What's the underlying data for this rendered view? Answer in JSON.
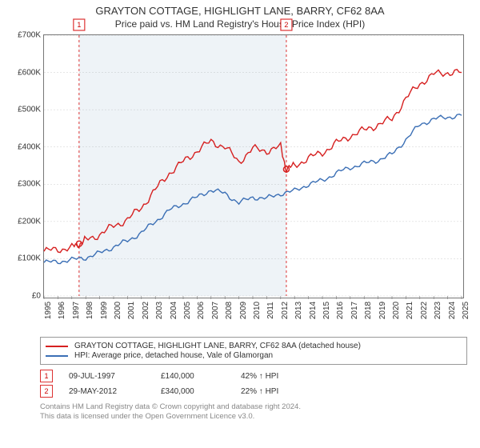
{
  "titles": {
    "line1": "GRAYTON COTTAGE, HIGHLIGHT LANE, BARRY, CF62 8AA",
    "line2": "Price paid vs. HM Land Registry's House Price Index (HPI)"
  },
  "colors": {
    "series_property": "#d62020",
    "series_hpi": "#3b6fb5",
    "shade": "#eef3f7",
    "event_border": "#d33",
    "attribution": "#888888",
    "axis": "#777777"
  },
  "chart": {
    "type": "line",
    "x_start_year": 1995,
    "x_end_year": 2025,
    "x_ticks": [
      1995,
      1996,
      1997,
      1998,
      1999,
      2000,
      2001,
      2002,
      2003,
      2004,
      2005,
      2006,
      2007,
      2008,
      2009,
      2010,
      2011,
      2012,
      2013,
      2014,
      2015,
      2016,
      2017,
      2018,
      2019,
      2020,
      2021,
      2022,
      2023,
      2024,
      2025
    ],
    "y_min": 0,
    "y_max": 700000,
    "y_ticks": [
      0,
      100000,
      200000,
      300000,
      400000,
      500000,
      600000,
      700000
    ],
    "y_tick_labels": [
      "£0",
      "£100K",
      "£200K",
      "£300K",
      "£400K",
      "£500K",
      "£600K",
      "£700K"
    ],
    "shaded_span": {
      "from_year": 1997.52,
      "to_year": 2012.41
    },
    "events": [
      {
        "id": "1",
        "year": 1997.52,
        "date": "09-JUL-1997",
        "price_label": "£140,000",
        "price": 140000,
        "delta": "42% ↑ HPI"
      },
      {
        "id": "2",
        "year": 2012.41,
        "date": "29-MAY-2012",
        "price_label": "£340,000",
        "price": 340000,
        "delta": "22% ↑ HPI"
      }
    ],
    "series": [
      {
        "key": "property",
        "legend": "GRAYTON COTTAGE, HIGHLIGHT LANE, BARRY, CF62 8AA (detached house)",
        "color": "#d62020",
        "points": [
          [
            1995,
            120000
          ],
          [
            1996,
            125000
          ],
          [
            1997,
            130000
          ],
          [
            1997.52,
            140000
          ],
          [
            1998,
            150000
          ],
          [
            1999,
            165000
          ],
          [
            2000,
            188000
          ],
          [
            2001,
            205000
          ],
          [
            2002,
            238000
          ],
          [
            2003,
            285000
          ],
          [
            2004,
            330000
          ],
          [
            2005,
            360000
          ],
          [
            2006,
            390000
          ],
          [
            2007,
            415000
          ],
          [
            2008,
            400000
          ],
          [
            2009,
            360000
          ],
          [
            2010,
            395000
          ],
          [
            2011,
            390000
          ],
          [
            2012,
            400000
          ],
          [
            2012.41,
            340000
          ],
          [
            2013,
            350000
          ],
          [
            2014,
            370000
          ],
          [
            2015,
            385000
          ],
          [
            2016,
            410000
          ],
          [
            2017,
            430000
          ],
          [
            2018,
            445000
          ],
          [
            2019,
            460000
          ],
          [
            2020,
            475000
          ],
          [
            2021,
            530000
          ],
          [
            2022,
            570000
          ],
          [
            2023,
            595000
          ],
          [
            2024,
            600000
          ],
          [
            2025,
            600000
          ]
        ]
      },
      {
        "key": "hpi",
        "legend": "HPI: Average price, detached house, Vale of Glamorgan",
        "color": "#3b6fb5",
        "points": [
          [
            1995,
            90000
          ],
          [
            1996,
            92000
          ],
          [
            1997,
            97000
          ],
          [
            1998,
            103000
          ],
          [
            1999,
            115000
          ],
          [
            2000,
            132000
          ],
          [
            2001,
            148000
          ],
          [
            2002,
            170000
          ],
          [
            2003,
            200000
          ],
          [
            2004,
            230000
          ],
          [
            2005,
            248000
          ],
          [
            2006,
            265000
          ],
          [
            2007,
            285000
          ],
          [
            2008,
            275000
          ],
          [
            2009,
            250000
          ],
          [
            2010,
            265000
          ],
          [
            2011,
            262000
          ],
          [
            2012,
            275000
          ],
          [
            2013,
            282000
          ],
          [
            2014,
            300000
          ],
          [
            2015,
            310000
          ],
          [
            2016,
            330000
          ],
          [
            2017,
            345000
          ],
          [
            2018,
            355000
          ],
          [
            2019,
            365000
          ],
          [
            2020,
            380000
          ],
          [
            2021,
            420000
          ],
          [
            2022,
            460000
          ],
          [
            2023,
            475000
          ],
          [
            2024,
            480000
          ],
          [
            2025,
            485000
          ]
        ]
      }
    ]
  },
  "legend": {
    "row1": "GRAYTON COTTAGE, HIGHLIGHT LANE, BARRY, CF62 8AA (detached house)",
    "row2": "HPI: Average price, detached house, Vale of Glamorgan"
  },
  "attribution": {
    "l1": "Contains HM Land Registry data © Crown copyright and database right 2024.",
    "l2": "This data is licensed under the Open Government Licence v3.0."
  }
}
